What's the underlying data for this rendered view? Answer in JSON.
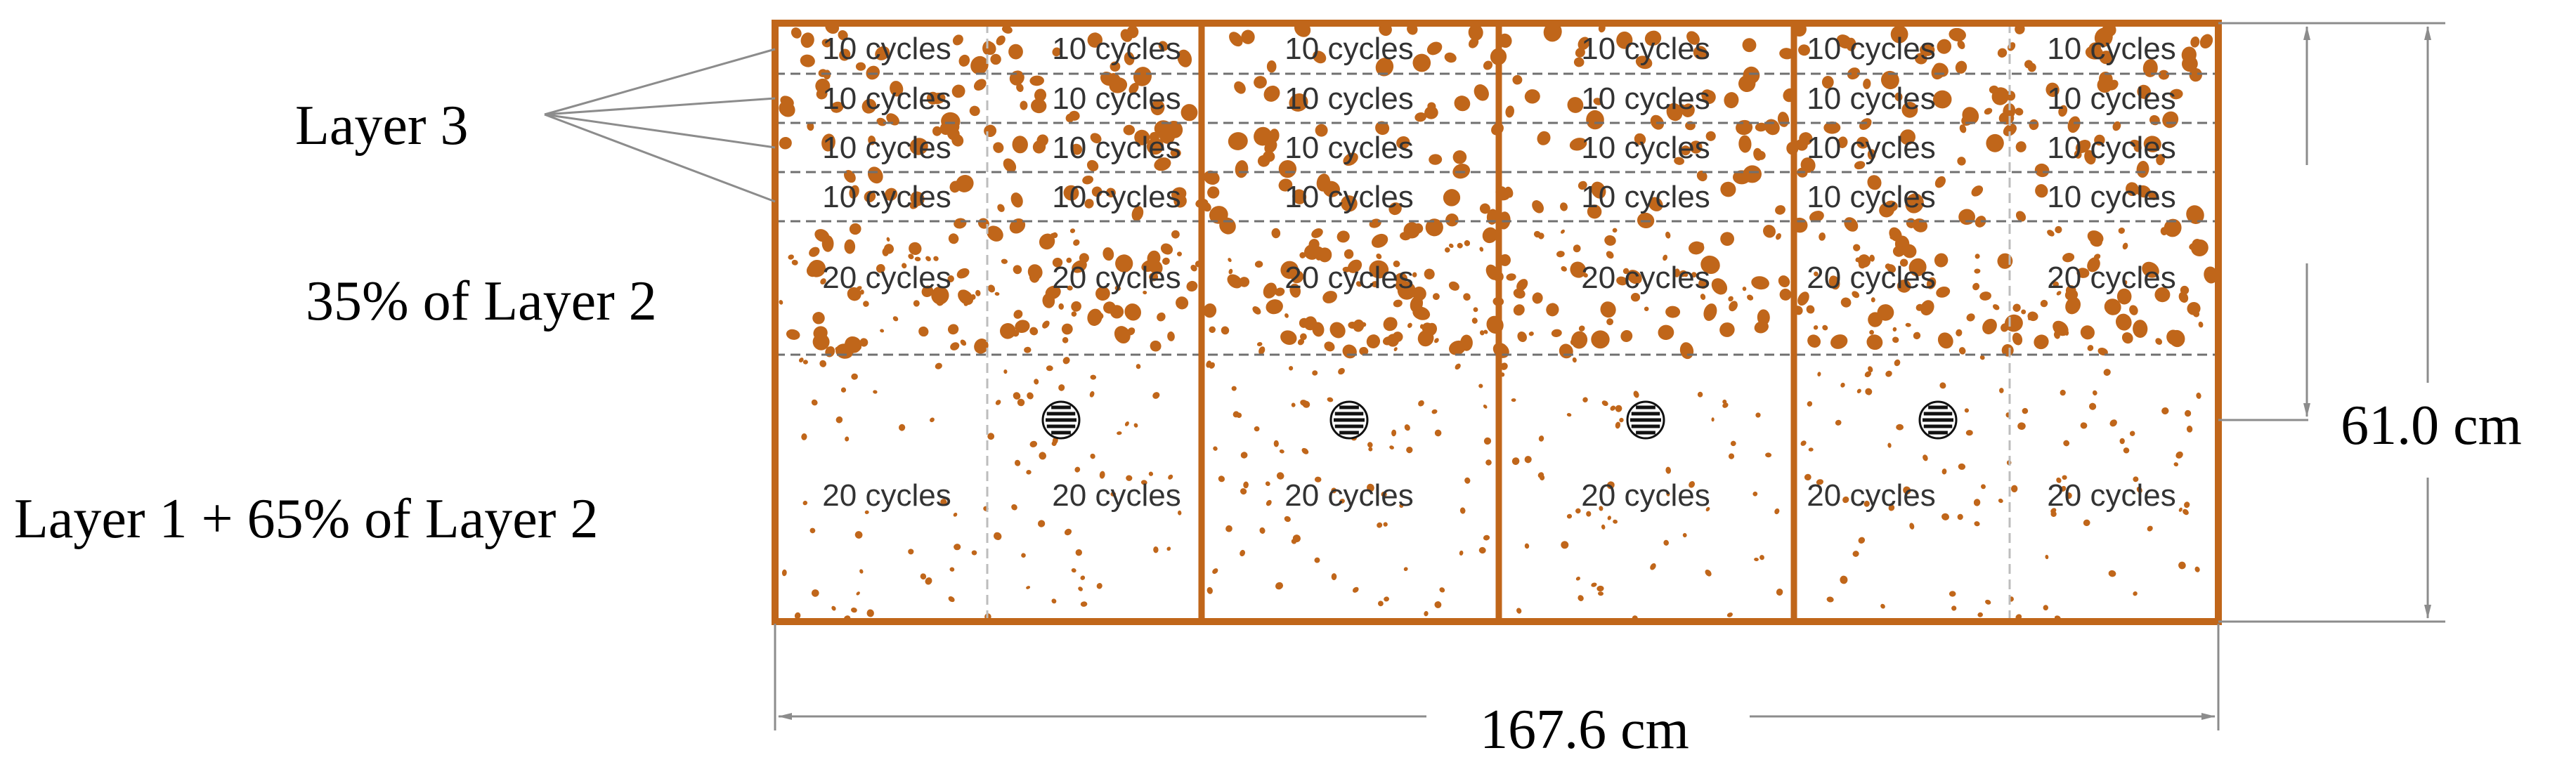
{
  "colors": {
    "frame": "#C0661A",
    "particle": "#C0661A",
    "dashed": "#707070",
    "divider_light": "#BDBDBD",
    "dimension": "#8C8C8C",
    "background": "#FFFFFF"
  },
  "labels": {
    "layer3": "Layer 3",
    "layer2_part": "35% of Layer 2",
    "layer1_part": "Layer 1 + 65% of Layer 2"
  },
  "dimensions": {
    "width": "167.6 cm",
    "height": "61.0 cm"
  },
  "cell_text": {
    "ten": "10 cycles",
    "twenty": "20 cycles"
  },
  "layout_structure": {
    "sections": 4,
    "sub_columns": 6,
    "thin_rows_layer3": 4,
    "rows_layer2": 1,
    "rows_layer1": 1
  },
  "icon_names": [
    "sensor-icon"
  ]
}
